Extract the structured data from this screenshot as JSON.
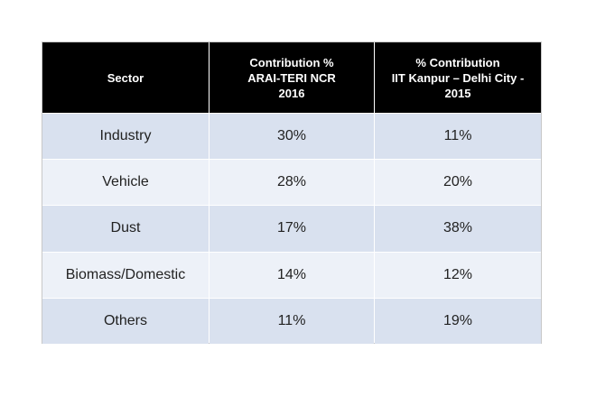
{
  "table": {
    "header": [
      [
        "Sector"
      ],
      [
        "Contribution %",
        "ARAI-TERI NCR",
        "2016"
      ],
      [
        "% Contribution",
        "IIT Kanpur – Delhi City -",
        "2015"
      ]
    ],
    "rows": [
      [
        "Industry",
        "30%",
        "11%"
      ],
      [
        "Vehicle",
        "28%",
        "20%"
      ],
      [
        "Dust",
        "17%",
        "38%"
      ],
      [
        "Biomass/Domestic",
        "14%",
        "12%"
      ],
      [
        "Others",
        "11%",
        "19%"
      ]
    ]
  }
}
